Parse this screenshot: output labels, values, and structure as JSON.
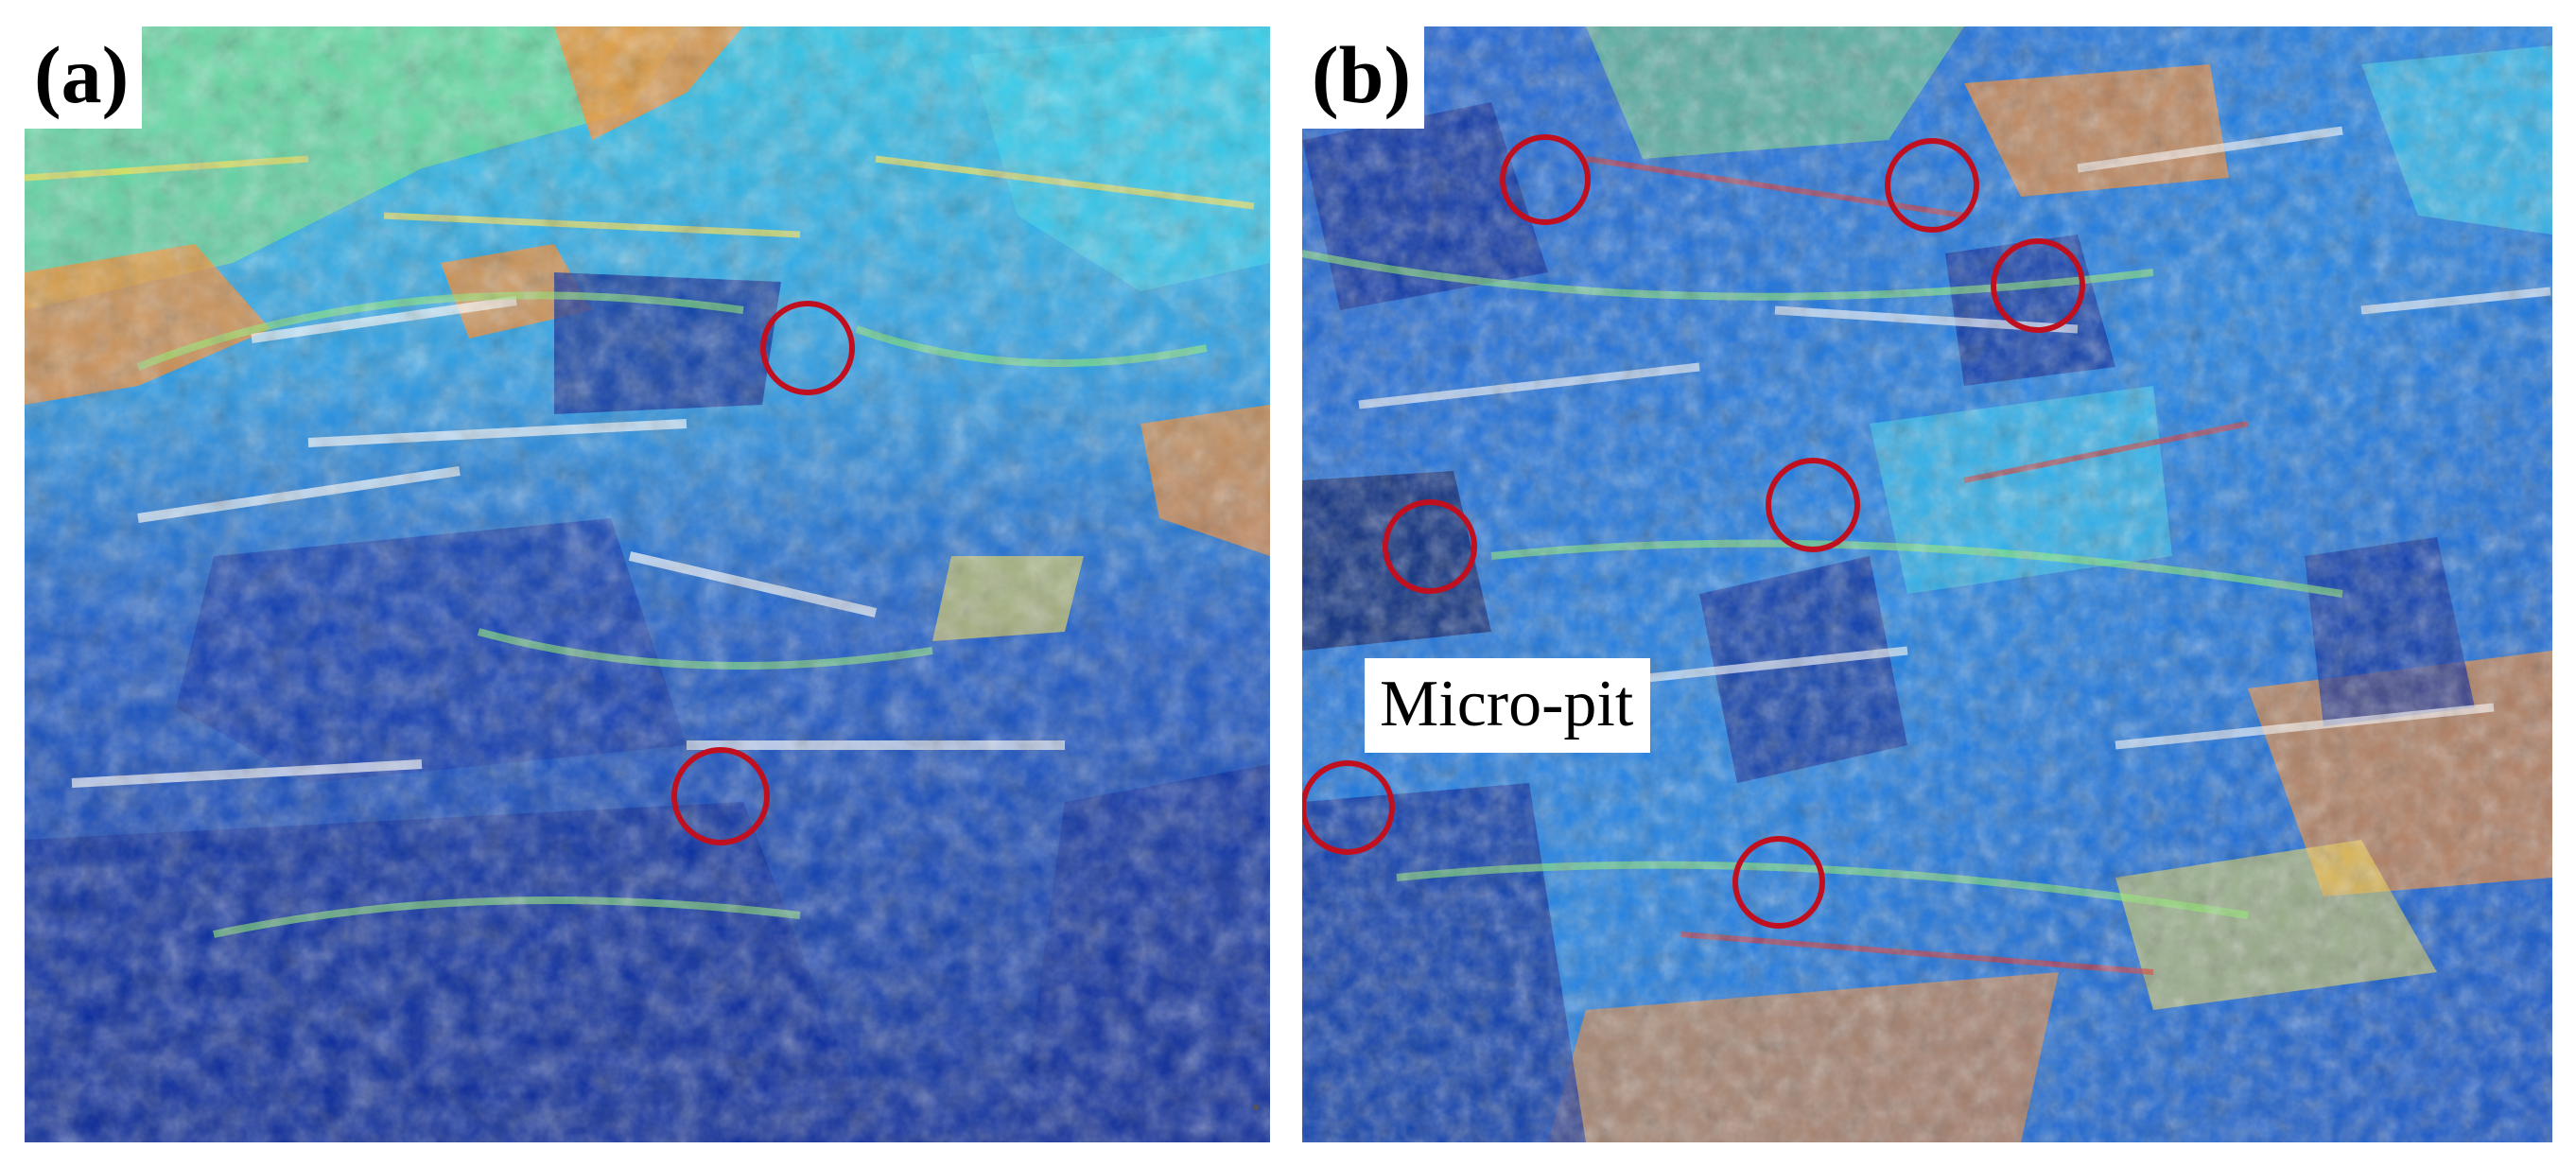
{
  "figure": {
    "panels": [
      {
        "id": "a",
        "label": "(a)"
      },
      {
        "id": "b",
        "label": "(b)",
        "annotation": "Micro-pit"
      }
    ],
    "colors": {
      "ring": "#c01020",
      "deep_blue": "#0a2a9a",
      "blue": "#1f6fe0",
      "cyan": "#27d8f0",
      "green": "#8df06a",
      "yellow": "#ffe34a",
      "orange": "#ff8a24",
      "red": "#e8251a",
      "white": "#ffffff"
    },
    "icons": [
      "micro-pit-marker-icon"
    ]
  }
}
